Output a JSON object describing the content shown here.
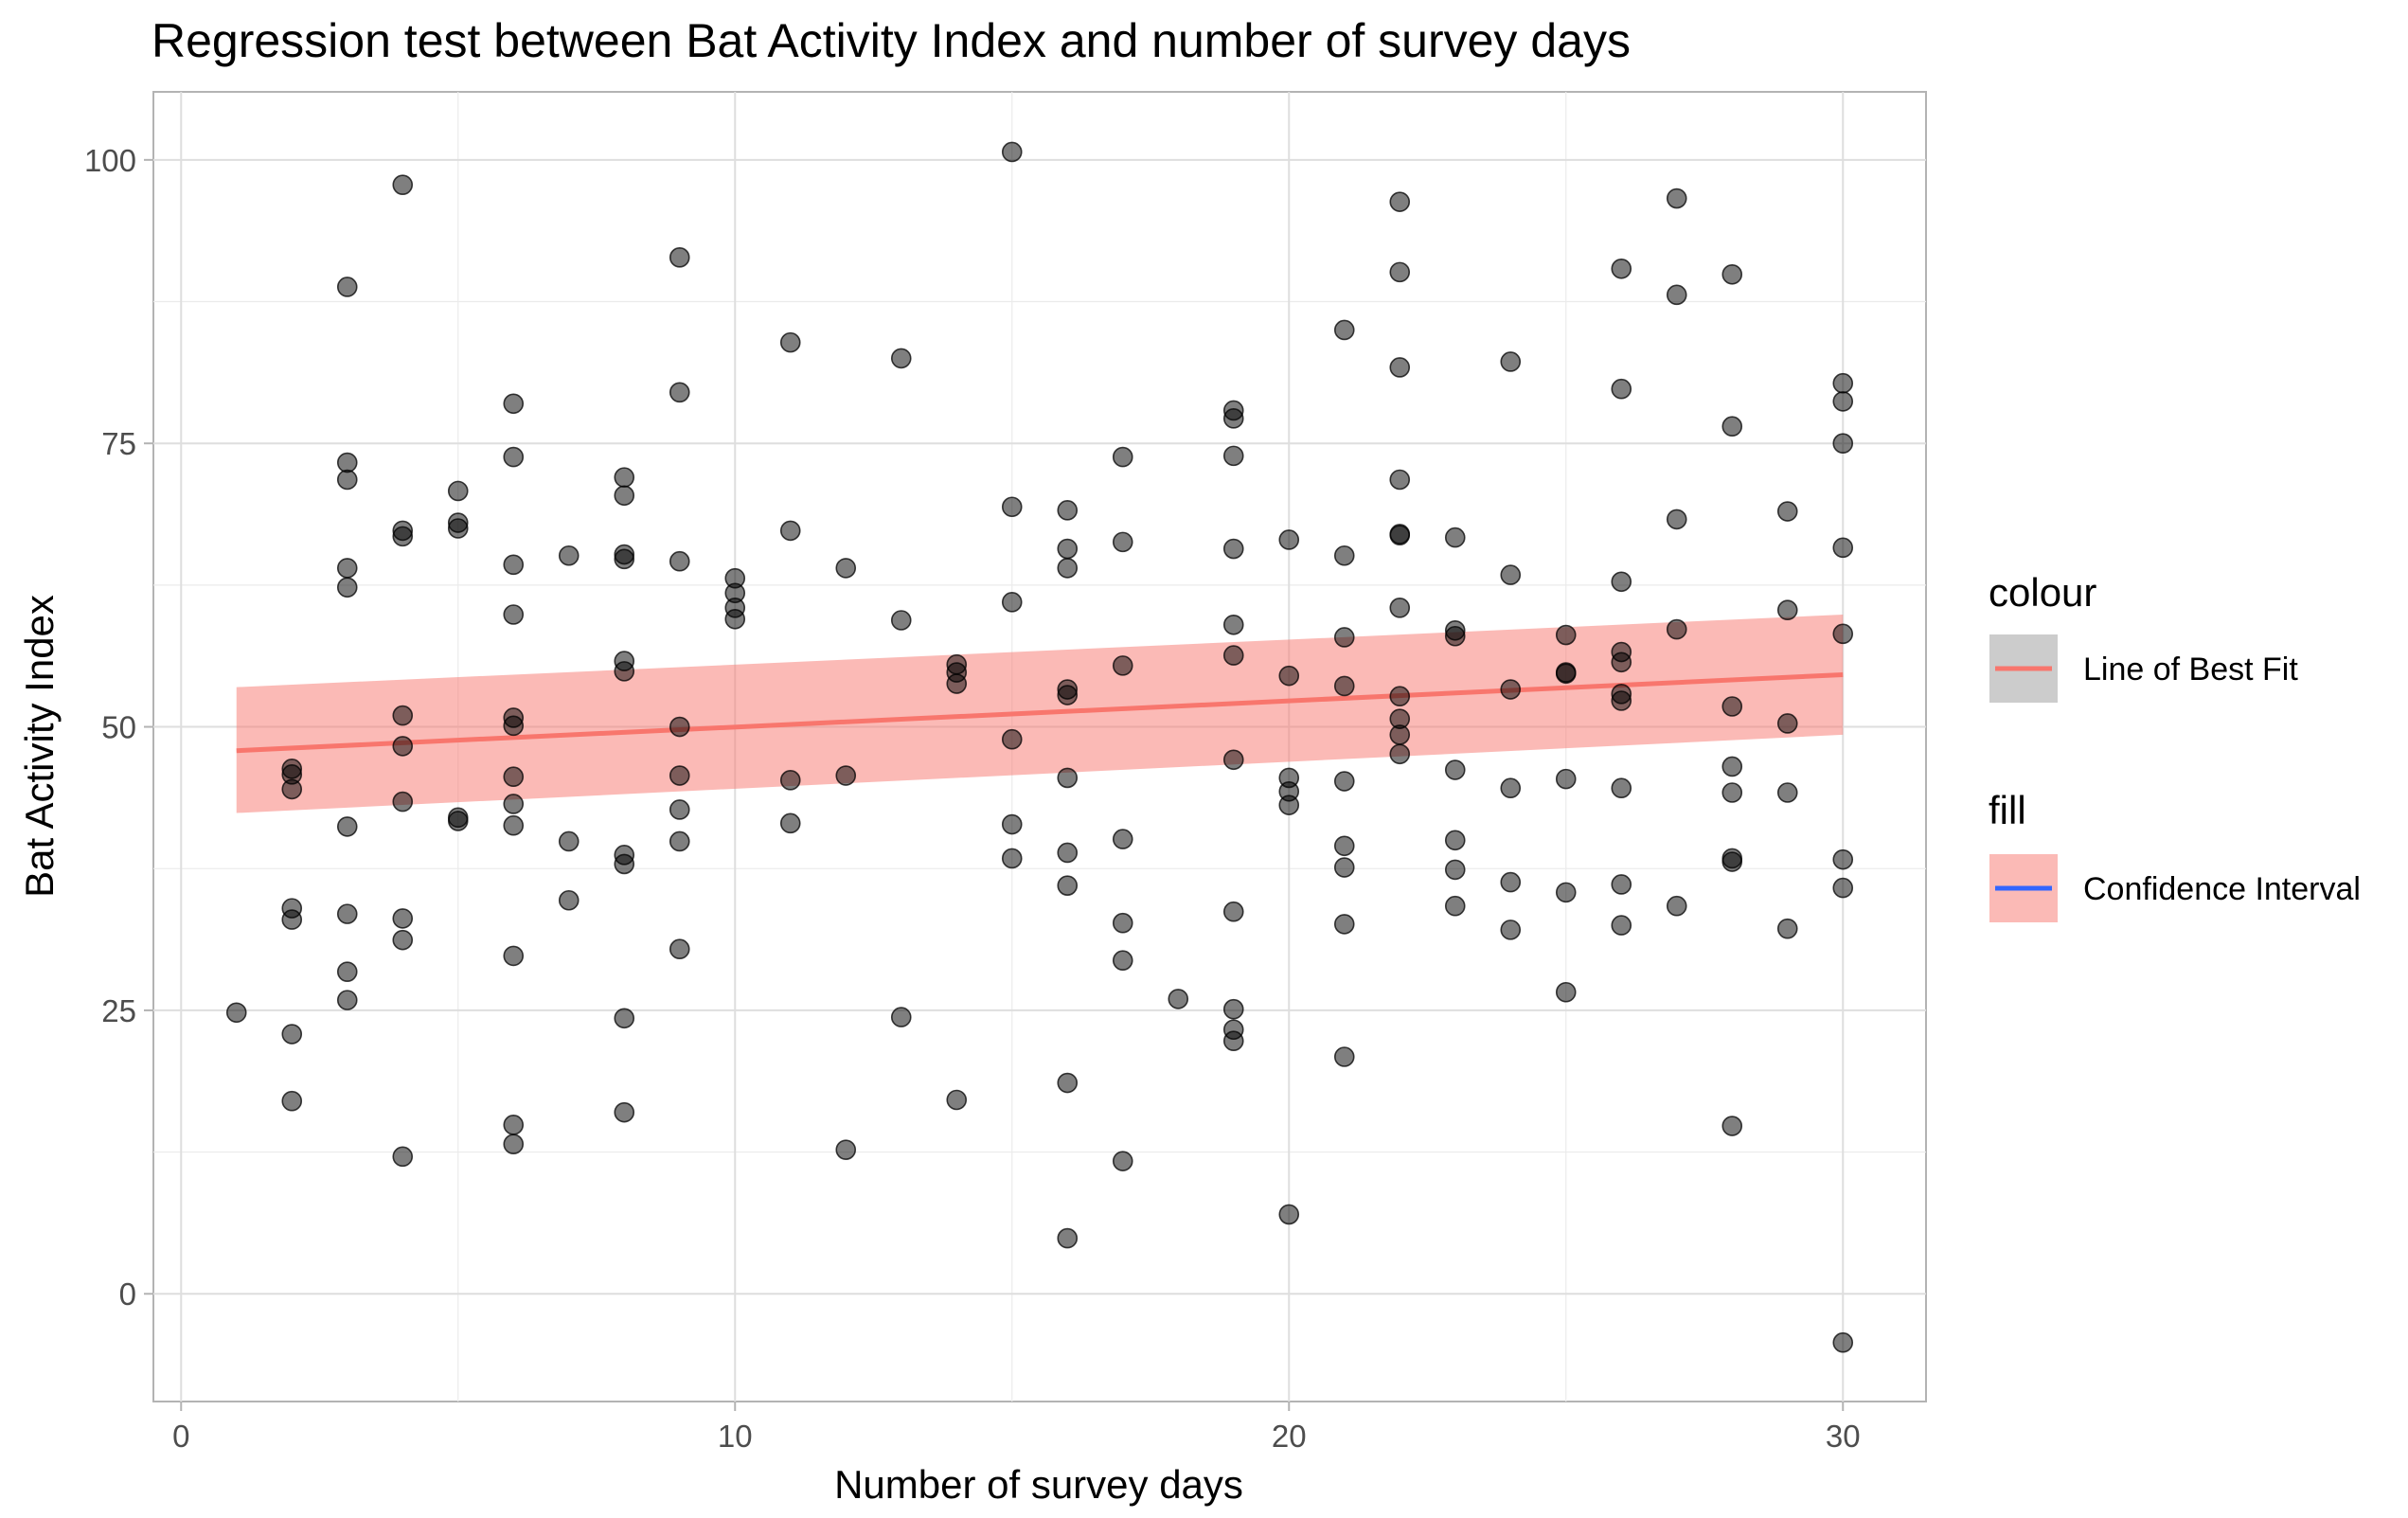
{
  "chart_data": {
    "type": "scatter",
    "title": "Regression test between Bat Activity Index and number of survey days",
    "xlabel": "Number of survey days",
    "ylabel": "Bat Activity Index",
    "xlim": [
      -0.5,
      31.5
    ],
    "ylim": [
      -9.5,
      106
    ],
    "x_ticks": [
      0,
      10,
      20,
      30
    ],
    "y_ticks": [
      0,
      25,
      50,
      75,
      100
    ],
    "x_tick_labels": [
      "0",
      "10",
      "20",
      "30"
    ],
    "y_tick_labels": [
      "0",
      "25",
      "50",
      "75",
      "100"
    ],
    "grid": true,
    "legend_position": "right",
    "legend": {
      "colour_title": "colour",
      "colour_label": "Line of Best Fit",
      "fill_title": "fill",
      "fill_label": "Confidence Interval"
    },
    "colors": {
      "points": "#000000",
      "line": "#f8766d",
      "band": "#f8766d",
      "legend_line_key_bg": "#cccccc",
      "legend_fill_line": "#3366ff"
    },
    "regression": {
      "x": [
        1,
        30
      ],
      "fit": [
        47.9,
        54.6
      ],
      "ci_lower": [
        42.4,
        49.3
      ],
      "ci_upper": [
        53.5,
        59.9
      ]
    },
    "points": [
      [
        1,
        24.8
      ],
      [
        2,
        46.3
      ],
      [
        2,
        45.8
      ],
      [
        2,
        44.5
      ],
      [
        2,
        34.0
      ],
      [
        2,
        33.0
      ],
      [
        2,
        22.9
      ],
      [
        2,
        17.0
      ],
      [
        3,
        88.8
      ],
      [
        3,
        73.3
      ],
      [
        3,
        71.8
      ],
      [
        3,
        64.0
      ],
      [
        3,
        62.3
      ],
      [
        3,
        41.2
      ],
      [
        3,
        33.5
      ],
      [
        3,
        28.4
      ],
      [
        3,
        25.9
      ],
      [
        4,
        97.8
      ],
      [
        4,
        67.3
      ],
      [
        4,
        66.8
      ],
      [
        4,
        51.0
      ],
      [
        4,
        48.3
      ],
      [
        4,
        43.4
      ],
      [
        4,
        33.1
      ],
      [
        4,
        31.2
      ],
      [
        4,
        12.1
      ],
      [
        5,
        70.8
      ],
      [
        5,
        68.0
      ],
      [
        5,
        67.5
      ],
      [
        5,
        42.0
      ],
      [
        5,
        41.7
      ],
      [
        6,
        78.5
      ],
      [
        6,
        73.8
      ],
      [
        6,
        64.3
      ],
      [
        6,
        59.9
      ],
      [
        6,
        50.8
      ],
      [
        6,
        50.1
      ],
      [
        6,
        45.6
      ],
      [
        6,
        43.2
      ],
      [
        6,
        41.3
      ],
      [
        6,
        29.8
      ],
      [
        6,
        14.9
      ],
      [
        6,
        13.2
      ],
      [
        7,
        65.1
      ],
      [
        7,
        39.9
      ],
      [
        7,
        34.7
      ],
      [
        8,
        72.0
      ],
      [
        8,
        70.4
      ],
      [
        8,
        65.2
      ],
      [
        8,
        64.8
      ],
      [
        8,
        55.8
      ],
      [
        8,
        54.9
      ],
      [
        8,
        38.7
      ],
      [
        8,
        37.9
      ],
      [
        8,
        24.3
      ],
      [
        8,
        16.0
      ],
      [
        9,
        91.4
      ],
      [
        9,
        79.5
      ],
      [
        9,
        64.6
      ],
      [
        9,
        50.0
      ],
      [
        9,
        45.7
      ],
      [
        9,
        42.7
      ],
      [
        9,
        39.9
      ],
      [
        9,
        30.4
      ],
      [
        10,
        63.1
      ],
      [
        10,
        61.8
      ],
      [
        10,
        60.5
      ],
      [
        10,
        59.5
      ],
      [
        11,
        83.9
      ],
      [
        11,
        67.3
      ],
      [
        11,
        45.3
      ],
      [
        11,
        41.5
      ],
      [
        12,
        64.0
      ],
      [
        12,
        45.7
      ],
      [
        12,
        12.7
      ],
      [
        13,
        82.5
      ],
      [
        13,
        59.4
      ],
      [
        13,
        24.4
      ],
      [
        14,
        55.5
      ],
      [
        14,
        54.8
      ],
      [
        14,
        53.8
      ],
      [
        14,
        17.1
      ],
      [
        15,
        100.7
      ],
      [
        15,
        69.4
      ],
      [
        15,
        61.0
      ],
      [
        15,
        48.9
      ],
      [
        15,
        41.4
      ],
      [
        15,
        38.4
      ],
      [
        16,
        69.1
      ],
      [
        16,
        65.7
      ],
      [
        16,
        64.0
      ],
      [
        16,
        53.3
      ],
      [
        16,
        52.8
      ],
      [
        16,
        45.5
      ],
      [
        16,
        38.9
      ],
      [
        16,
        36.0
      ],
      [
        16,
        18.6
      ],
      [
        16,
        4.9
      ],
      [
        17,
        73.8
      ],
      [
        17,
        66.3
      ],
      [
        17,
        55.4
      ],
      [
        17,
        40.1
      ],
      [
        17,
        32.7
      ],
      [
        17,
        29.4
      ],
      [
        17,
        11.7
      ],
      [
        18,
        26.0
      ],
      [
        19,
        77.9
      ],
      [
        19,
        77.2
      ],
      [
        19,
        73.9
      ],
      [
        19,
        65.7
      ],
      [
        19,
        59.0
      ],
      [
        19,
        56.3
      ],
      [
        19,
        47.1
      ],
      [
        19,
        33.7
      ],
      [
        19,
        25.1
      ],
      [
        19,
        23.3
      ],
      [
        19,
        22.3
      ],
      [
        20,
        66.5
      ],
      [
        20,
        54.5
      ],
      [
        20,
        45.5
      ],
      [
        20,
        44.3
      ],
      [
        20,
        43.1
      ],
      [
        20,
        7.0
      ],
      [
        21,
        85.0
      ],
      [
        21,
        65.1
      ],
      [
        21,
        57.9
      ],
      [
        21,
        53.6
      ],
      [
        21,
        45.2
      ],
      [
        21,
        39.5
      ],
      [
        21,
        37.6
      ],
      [
        21,
        32.6
      ],
      [
        21,
        20.9
      ],
      [
        22,
        96.3
      ],
      [
        22,
        90.1
      ],
      [
        22,
        81.7
      ],
      [
        22,
        71.8
      ],
      [
        22,
        67.0
      ],
      [
        22,
        66.9
      ],
      [
        22,
        60.5
      ],
      [
        22,
        52.7
      ],
      [
        22,
        50.7
      ],
      [
        22,
        49.3
      ],
      [
        22,
        47.6
      ],
      [
        23,
        66.7
      ],
      [
        23,
        58.5
      ],
      [
        23,
        58.0
      ],
      [
        23,
        46.2
      ],
      [
        23,
        40.0
      ],
      [
        23,
        37.4
      ],
      [
        23,
        34.2
      ],
      [
        24,
        82.2
      ],
      [
        24,
        63.4
      ],
      [
        24,
        53.3
      ],
      [
        24,
        44.6
      ],
      [
        24,
        36.3
      ],
      [
        24,
        32.1
      ],
      [
        25,
        58.1
      ],
      [
        25,
        54.7
      ],
      [
        25,
        54.8
      ],
      [
        25,
        45.4
      ],
      [
        25,
        35.4
      ],
      [
        25,
        26.6
      ],
      [
        26,
        90.4
      ],
      [
        26,
        79.8
      ],
      [
        26,
        62.8
      ],
      [
        26,
        56.6
      ],
      [
        26,
        55.7
      ],
      [
        26,
        52.9
      ],
      [
        26,
        52.3
      ],
      [
        26,
        44.6
      ],
      [
        26,
        36.1
      ],
      [
        26,
        32.5
      ],
      [
        27,
        96.6
      ],
      [
        27,
        88.1
      ],
      [
        27,
        68.3
      ],
      [
        27,
        58.6
      ],
      [
        27,
        34.2
      ],
      [
        28,
        89.9
      ],
      [
        28,
        76.5
      ],
      [
        28,
        51.8
      ],
      [
        28,
        46.5
      ],
      [
        28,
        44.2
      ],
      [
        28,
        38.4
      ],
      [
        28,
        38.1
      ],
      [
        28,
        14.8
      ],
      [
        29,
        69.0
      ],
      [
        29,
        60.3
      ],
      [
        29,
        50.3
      ],
      [
        29,
        44.2
      ],
      [
        29,
        32.2
      ],
      [
        30,
        80.3
      ],
      [
        30,
        78.7
      ],
      [
        30,
        75.0
      ],
      [
        30,
        65.8
      ],
      [
        30,
        58.2
      ],
      [
        30,
        38.3
      ],
      [
        30,
        35.8
      ],
      [
        30,
        -4.3
      ]
    ]
  }
}
